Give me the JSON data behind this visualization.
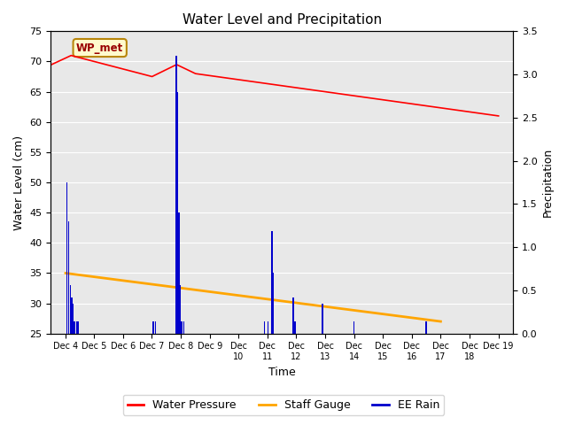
{
  "title": "Water Level and Precipitation",
  "xlabel": "Time",
  "ylabel_left": "Water Level (cm)",
  "ylabel_right": "Precipitation",
  "annotation_box": "WP_met",
  "ylim_left": [
    25,
    75
  ],
  "ylim_right": [
    0.0,
    3.5
  ],
  "yticks_left": [
    25,
    30,
    35,
    40,
    45,
    50,
    55,
    60,
    65,
    70,
    75
  ],
  "yticks_right": [
    0.0,
    0.5,
    1.0,
    1.5,
    2.0,
    2.5,
    3.0,
    3.5
  ],
  "xtick_labels": [
    "Dec 4",
    "Dec 5",
    "Dec 6",
    "Dec 7",
    "Dec 8",
    "Dec 9Dec",
    "10Dec",
    "11Dec",
    "12Dec",
    "13Dec",
    "14Dec",
    "15Dec",
    "16Dec",
    "17Dec",
    "18Dec 19"
  ],
  "water_pressure_color": "#FF0000",
  "staff_gauge_color": "#FFA500",
  "ee_rain_color": "#0000CC",
  "background_color": "#E8E8E8",
  "grid_color": "#FFFFFF",
  "legend_labels": [
    "Water Pressure",
    "Staff Gauge",
    "EE Rain"
  ],
  "title_fontsize": 11,
  "axis_label_fontsize": 9,
  "tick_fontsize": 8
}
